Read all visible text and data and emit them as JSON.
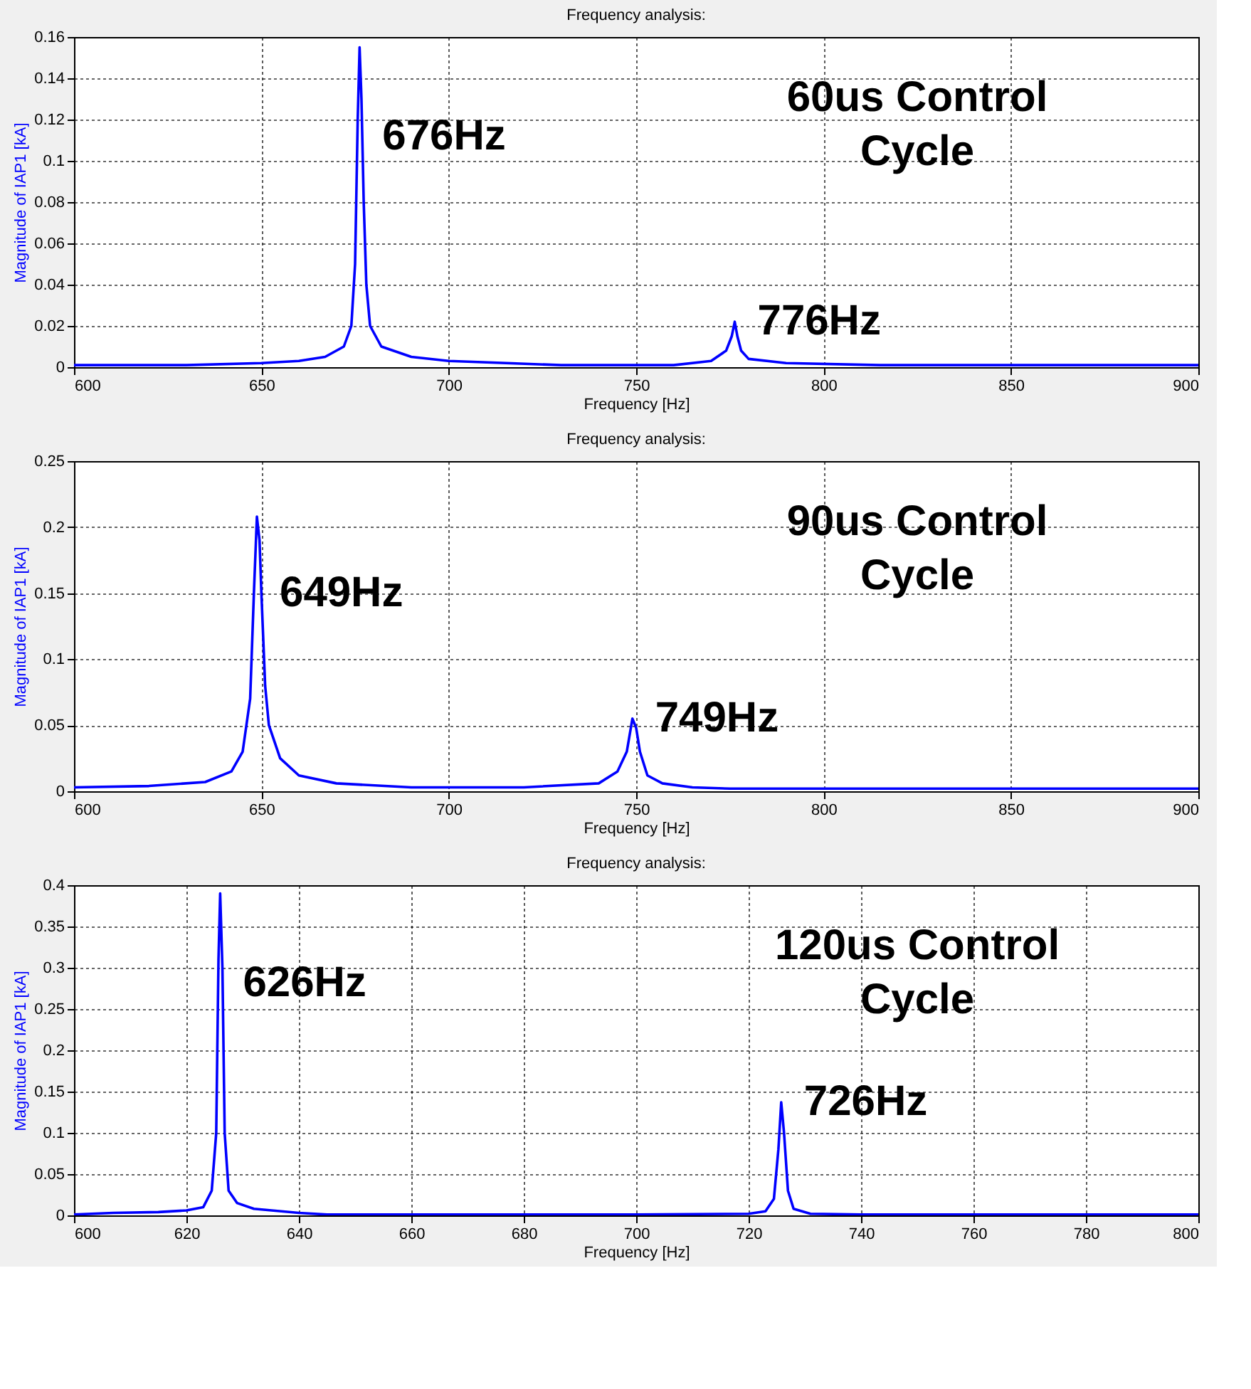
{
  "chart_data": [
    {
      "type": "line",
      "title": "Frequency analysis:",
      "xlabel": "Frequency [Hz]",
      "ylabel": "Magnitude of IAP1 [kA]",
      "x": [
        600,
        630,
        650,
        660,
        667,
        672,
        674,
        675,
        675.7,
        676.2,
        676.7,
        677.3,
        678,
        679,
        682,
        690,
        700,
        730,
        760,
        770,
        774,
        775.5,
        776.3,
        777,
        778,
        780,
        790,
        815,
        900
      ],
      "series": [
        {
          "color": "#0000ff",
          "values": [
            0.001,
            0.001,
            0.002,
            0.003,
            0.005,
            0.01,
            0.02,
            0.05,
            0.12,
            0.155,
            0.13,
            0.08,
            0.04,
            0.02,
            0.01,
            0.005,
            0.003,
            0.001,
            0.001,
            0.003,
            0.008,
            0.015,
            0.022,
            0.015,
            0.008,
            0.004,
            0.002,
            0.001,
            0.001
          ]
        }
      ],
      "xlim": [
        600,
        900
      ],
      "xticks": [
        600,
        650,
        700,
        750,
        800,
        850,
        900
      ],
      "ylim": [
        0,
        0.16
      ],
      "yticks": [
        0,
        0.02,
        0.04,
        0.06,
        0.08,
        0.1,
        0.12,
        0.14,
        0.16
      ],
      "grid": true,
      "annotations": [
        "676Hz",
        "776Hz",
        "60us Control Cycle"
      ]
    },
    {
      "type": "line",
      "title": "Frequency analysis:",
      "xlabel": "Frequency [Hz]",
      "ylabel": "Magnitude of IAP1 [kA]",
      "x": [
        600,
        620,
        635,
        642,
        645,
        647,
        648,
        648.8,
        649.5,
        650,
        651,
        652,
        655,
        660,
        670,
        690,
        720,
        740,
        745,
        747.5,
        749,
        750,
        751,
        753,
        757,
        765,
        775,
        850,
        900
      ],
      "series": [
        {
          "color": "#0000ff",
          "values": [
            0.003,
            0.004,
            0.007,
            0.015,
            0.03,
            0.07,
            0.15,
            0.208,
            0.19,
            0.15,
            0.08,
            0.05,
            0.025,
            0.012,
            0.006,
            0.003,
            0.003,
            0.006,
            0.015,
            0.03,
            0.055,
            0.048,
            0.03,
            0.012,
            0.006,
            0.003,
            0.002,
            0.002,
            0.002
          ]
        }
      ],
      "xlim": [
        600,
        900
      ],
      "xticks": [
        600,
        650,
        700,
        750,
        800,
        850,
        900
      ],
      "ylim": [
        0,
        0.25
      ],
      "yticks": [
        0,
        0.05,
        0.1,
        0.15,
        0.2,
        0.25
      ],
      "grid": true,
      "annotations": [
        "649Hz",
        "749Hz",
        "90us Control Cycle"
      ]
    },
    {
      "type": "line",
      "title": "Frequency analysis:",
      "xlabel": "Frequency [Hz]",
      "ylabel": "Magnitude of IAP1 [kA]",
      "x": [
        600,
        607,
        615,
        620,
        623,
        624.5,
        625.3,
        625.7,
        626,
        626.4,
        626.8,
        627.5,
        629,
        632,
        640,
        645,
        700,
        720,
        723,
        724.5,
        725.3,
        725.8,
        726.3,
        727,
        728,
        731,
        740,
        800
      ],
      "series": [
        {
          "color": "#0000ff",
          "values": [
            0.001,
            0.003,
            0.004,
            0.006,
            0.01,
            0.03,
            0.1,
            0.31,
            0.39,
            0.3,
            0.1,
            0.03,
            0.015,
            0.008,
            0.003,
            0.001,
            0.001,
            0.002,
            0.005,
            0.02,
            0.08,
            0.137,
            0.1,
            0.03,
            0.008,
            0.002,
            0.001,
            0.001
          ]
        }
      ],
      "xlim": [
        600,
        800
      ],
      "xticks": [
        600,
        620,
        640,
        660,
        680,
        700,
        720,
        740,
        760,
        780,
        800
      ],
      "ylim": [
        0,
        0.4
      ],
      "yticks": [
        0,
        0.05,
        0.1,
        0.15,
        0.2,
        0.25,
        0.3,
        0.35,
        0.4
      ],
      "grid": true,
      "annotations": [
        "626Hz",
        "726Hz",
        "120us Control Cycle"
      ]
    }
  ]
}
